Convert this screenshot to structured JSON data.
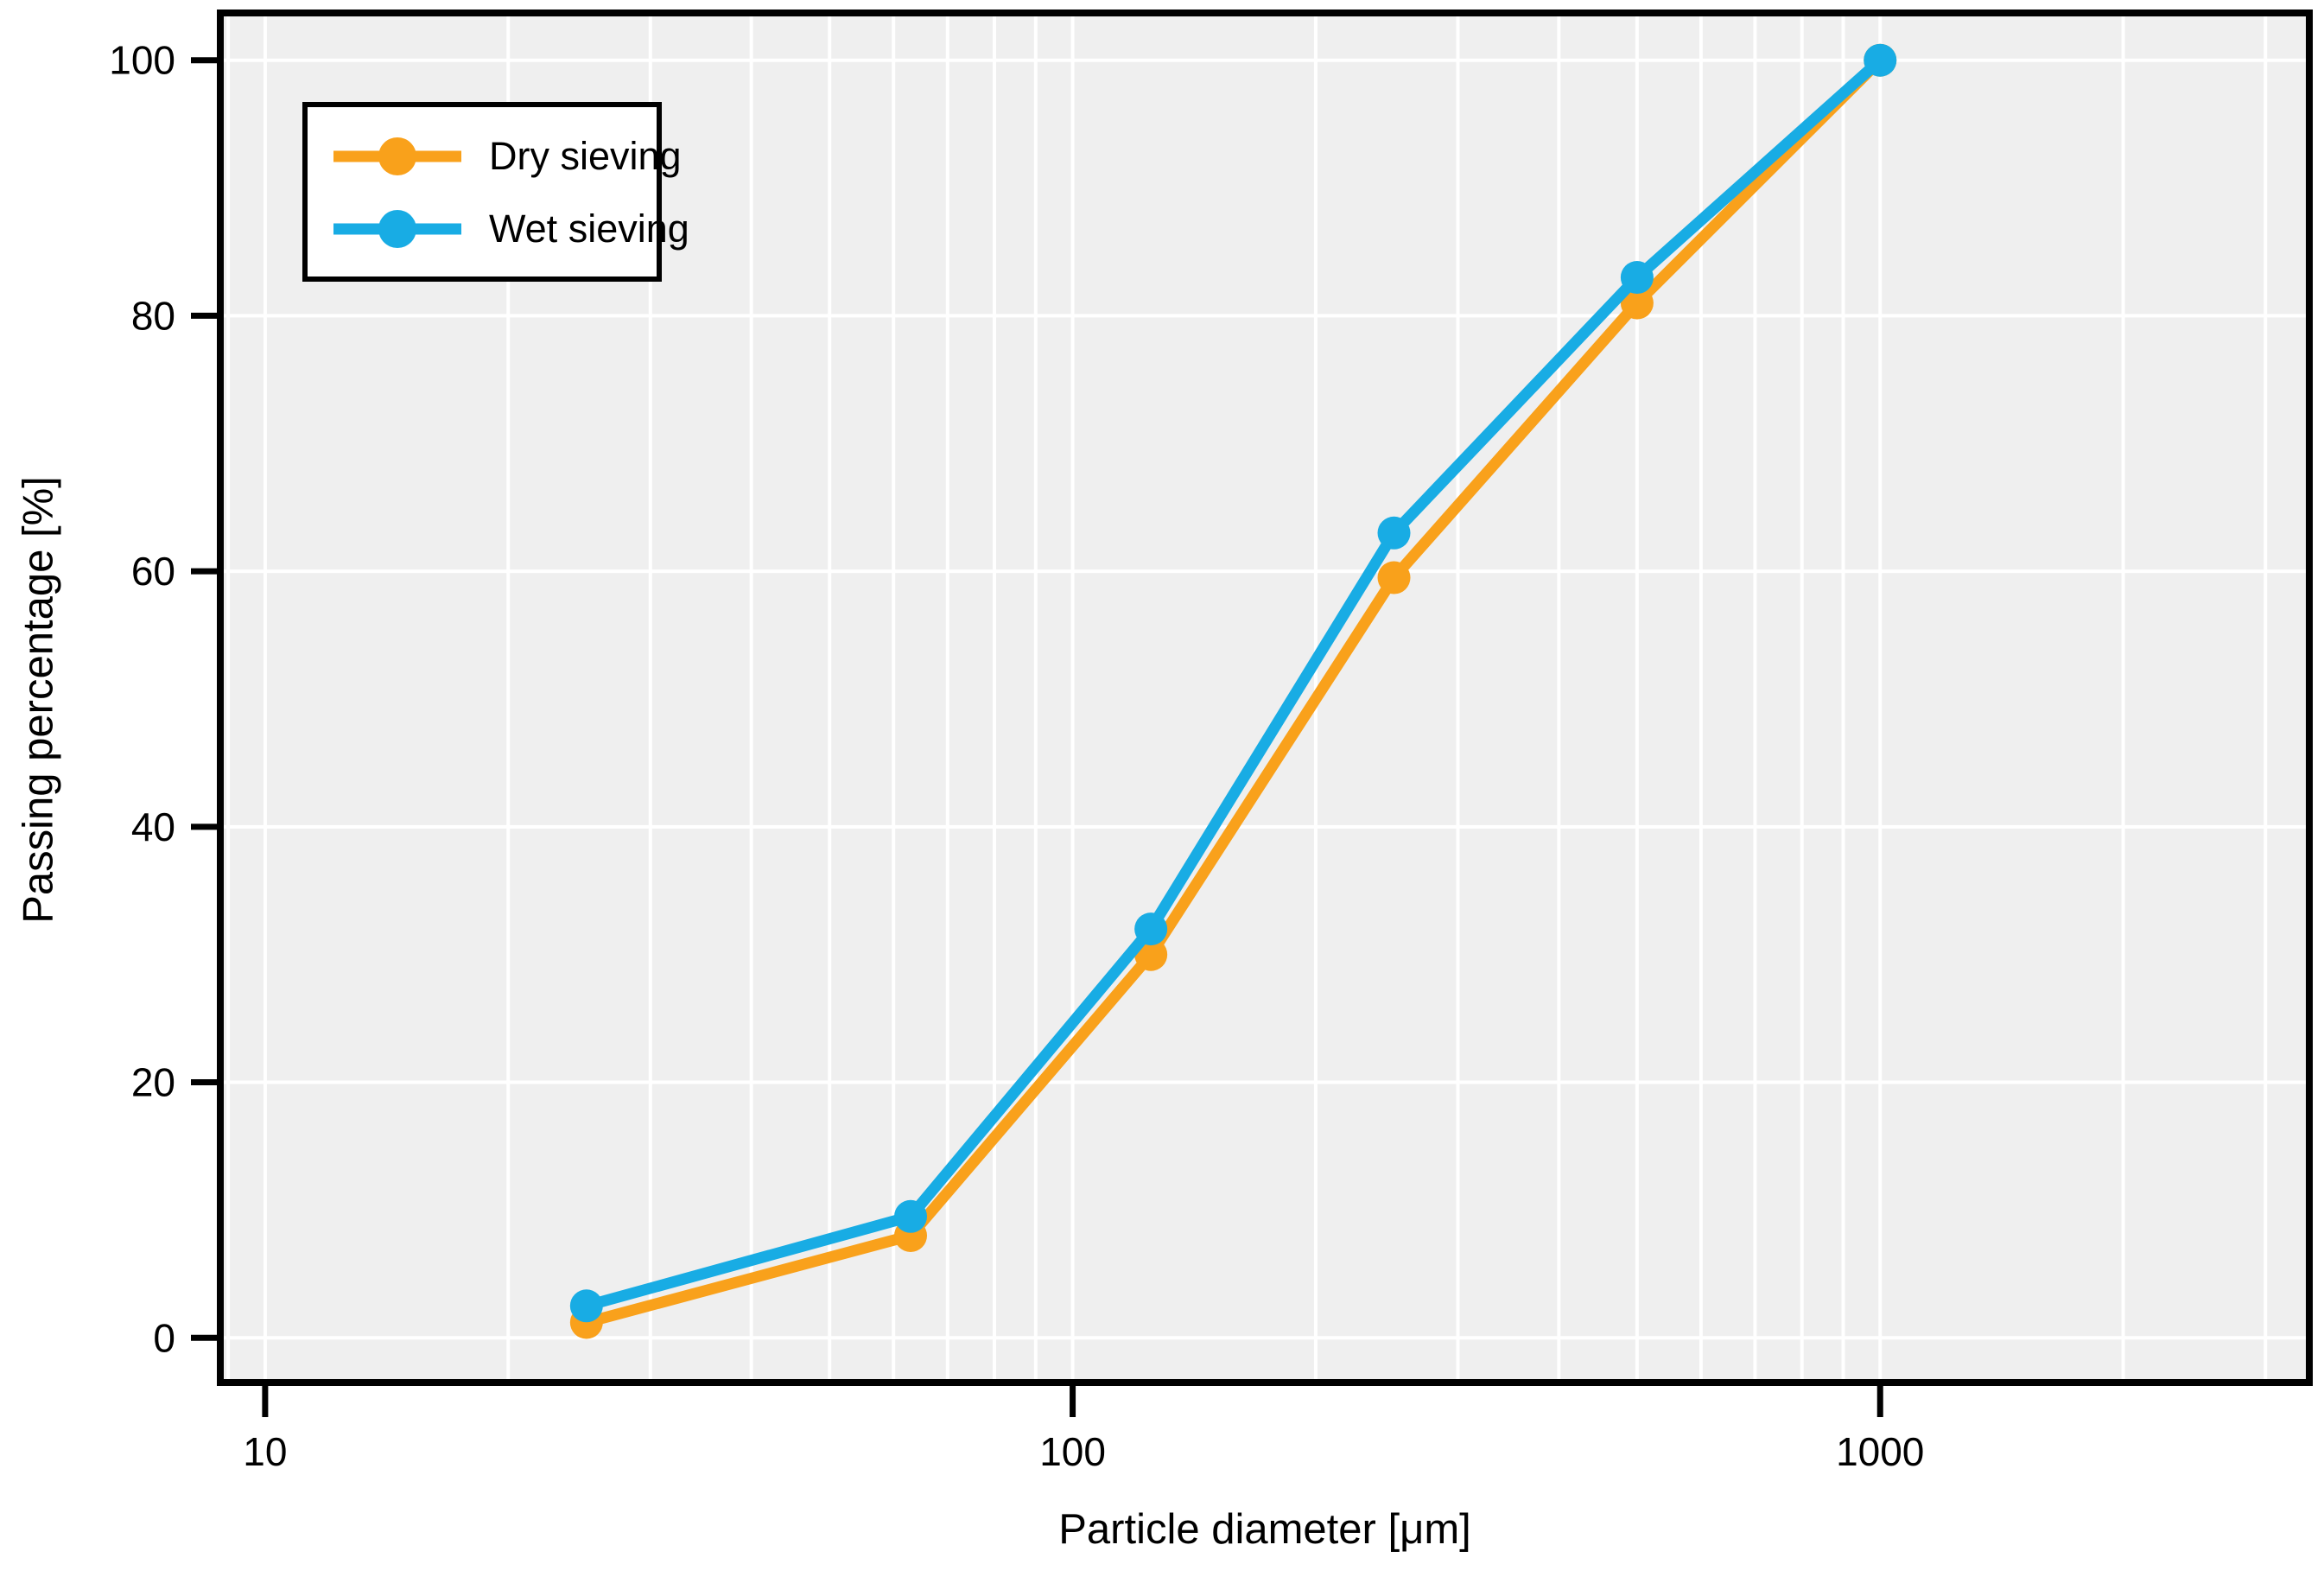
{
  "chart_data": {
    "type": "line",
    "title": "",
    "xlabel": "Particle diameter [μm]",
    "ylabel": "Passing percentage [%]",
    "x_scale": "log",
    "xlim": [
      8.8,
      3400
    ],
    "ylim": [
      -3.5,
      103.7
    ],
    "x_major_ticks": [
      10,
      100,
      1000
    ],
    "x_major_tick_labels": [
      "10",
      "100",
      "1000"
    ],
    "y_ticks": [
      0,
      20,
      40,
      60,
      80,
      100
    ],
    "y_tick_labels": [
      "0",
      "20",
      "40",
      "60",
      "80",
      "100"
    ],
    "grid": true,
    "legend_position": "top-left",
    "plot_bg_color": "#EFEFEF",
    "grid_color": "#FFFFFF",
    "frame_color": "#000000",
    "x": [
      25,
      63,
      125,
      250,
      500,
      1000
    ],
    "series": [
      {
        "name": "Dry sieving",
        "color": "#F9A11B",
        "values": [
          1.2,
          8,
          30,
          59.5,
          81,
          100
        ]
      },
      {
        "name": "Wet sieving",
        "color": "#18ACE4",
        "values": [
          2.5,
          9.5,
          32,
          63,
          83,
          100
        ]
      }
    ]
  },
  "legend": {
    "items": [
      {
        "label": "Dry sieving"
      },
      {
        "label": "Wet sieving"
      }
    ]
  }
}
